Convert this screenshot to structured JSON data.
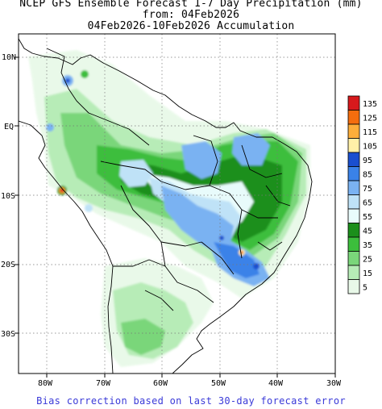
{
  "title": {
    "line1": "NCEP GFS Ensemble Forecast 1-7 Day Precipitation (mm)",
    "line2": "from: 04Feb2026",
    "line3": "04Feb2026-10Feb2026 Accumulation"
  },
  "axes": {
    "lat_labels": [
      "10N",
      "EQ",
      "10S",
      "20S",
      "30S"
    ],
    "lon_labels": [
      "80W",
      "70W",
      "60W",
      "50W",
      "40W",
      "30W"
    ],
    "lon_range": [
      -85,
      -30
    ],
    "lat_range": [
      -36,
      13
    ],
    "grid": "dotted"
  },
  "legend": {
    "units": "mm",
    "levels": [
      {
        "label": "135",
        "color": "#d7191c"
      },
      {
        "label": "125",
        "color": "#f46d0e"
      },
      {
        "label": "115",
        "color": "#fdae3a"
      },
      {
        "label": "105",
        "color": "#fff0a8"
      },
      {
        "label": "95",
        "color": "#1a4fcf"
      },
      {
        "label": "85",
        "color": "#3a82e8"
      },
      {
        "label": "75",
        "color": "#7ab2f2"
      },
      {
        "label": "65",
        "color": "#bfe2f7"
      },
      {
        "label": "55",
        "color": "#e8fbfb"
      },
      {
        "label": "45",
        "color": "#1b8f1b"
      },
      {
        "label": "35",
        "color": "#3cbe3c"
      },
      {
        "label": "25",
        "color": "#7ad67a"
      },
      {
        "label": "15",
        "color": "#b7ecb7"
      },
      {
        "label": "5",
        "color": "#e9f9e9"
      }
    ]
  },
  "footer": "Bias correction based on last 30-day forecast error"
}
